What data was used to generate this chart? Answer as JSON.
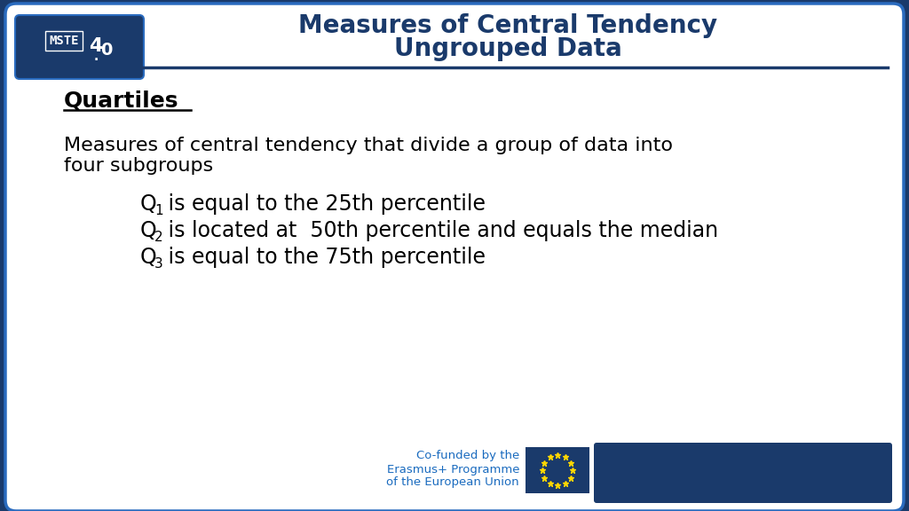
{
  "title_line1": "Measures of Central Tendency",
  "title_line2": "Ungrouped Data",
  "title_color": "#1a3a6b",
  "bg_outer": "#1a3a6b",
  "bg_inner": "#ffffff",
  "section_title": "Quartiles",
  "section_title_color": "#000000",
  "desc_line1": "Measures of central tendency that divide a group of data into",
  "desc_line2": "four subgroups",
  "bullet1_main": " is equal to the 25th percentile",
  "bullet2_main": " is located at  50th percentile and equals the median",
  "bullet3_main": " is equal to the 75th percentile",
  "footer_line1": "Co-funded by the",
  "footer_line2": "Erasmus+ Programme",
  "footer_line3": "of the European Union",
  "footer_text_color": "#1a6bbf",
  "dark_blue": "#1a3a6b",
  "medium_blue": "#2a6bbf"
}
